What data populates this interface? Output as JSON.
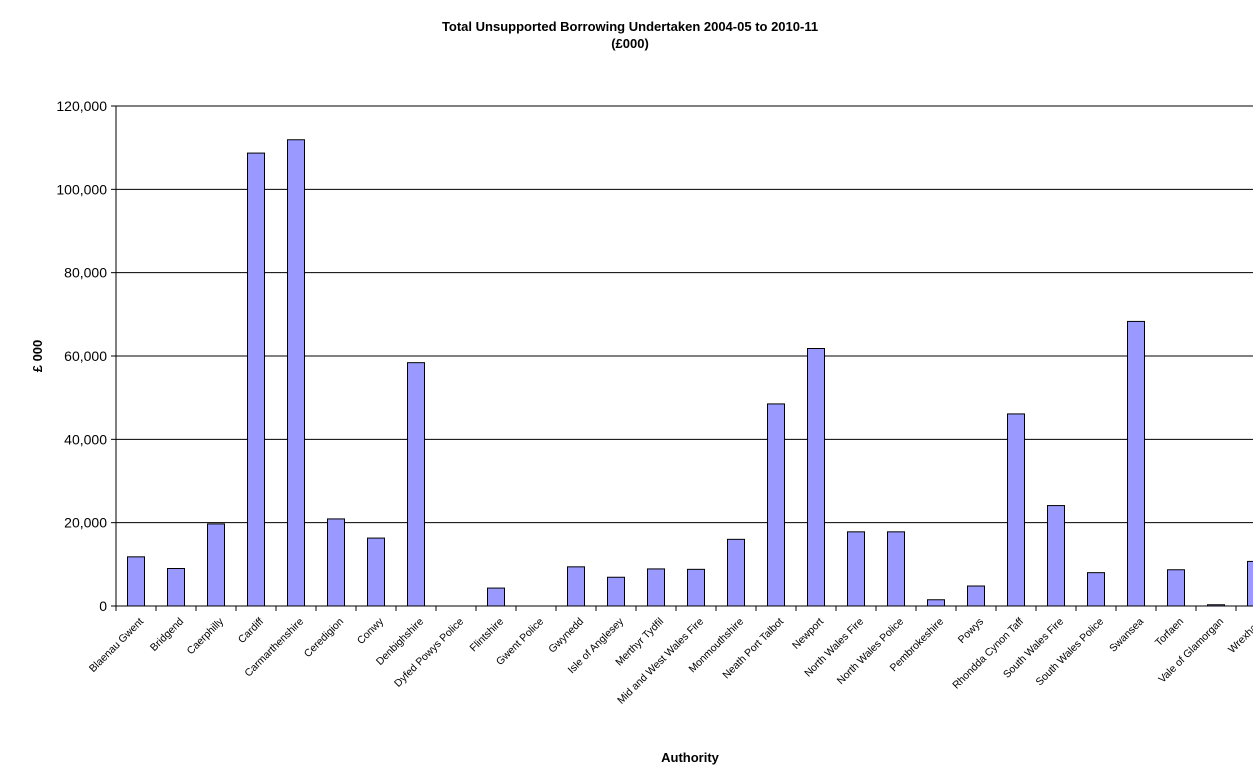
{
  "chart_data": {
    "type": "bar",
    "title": "Total Unsupported Borrowing Undertaken  2004-05 to 2010-11",
    "subtitle": "(£000)",
    "xlabel": "Authority",
    "ylabel": "£ 000",
    "ylim": [
      0,
      120000
    ],
    "yticks": [
      "0",
      "20,000",
      "40,000",
      "60,000",
      "80,000",
      "100,000",
      "120,000"
    ],
    "ytick_values": [
      0,
      20000,
      40000,
      60000,
      80000,
      100000,
      120000
    ],
    "grid": true,
    "legend": "none",
    "bar_color": "#9999ff",
    "categories": [
      "Blaenau Gwent",
      "Bridgend",
      "Caerphilly",
      "Cardiff",
      "Carmarthenshire",
      "Ceredigion",
      "Conwy",
      "Denbighshire",
      "Dyfed Powys Police",
      "Flintshire",
      "Gwent Police",
      "Gwynedd",
      "Isle of Anglesey",
      "Merthyr Tydfil",
      "Mid and West Wales Fire",
      "Monmouthshire",
      "Neath Port Talbot",
      "Newport",
      "North Wales Fire",
      "North Wales Police",
      "Pembrokeshire",
      "Powys",
      "Rhondda Cynon Taff",
      "South Wales Fire",
      "South Wales Police",
      "Swansea",
      "Torfaen",
      "Vale of Glamorgan",
      "Wrexham"
    ],
    "values": [
      11800,
      9000,
      19700,
      108700,
      111900,
      20900,
      16300,
      58400,
      0,
      4300,
      0,
      9400,
      6900,
      8900,
      8800,
      16000,
      48500,
      61800,
      17800,
      17800,
      1500,
      4800,
      46100,
      24100,
      8000,
      68300,
      8700,
      300,
      10700
    ]
  }
}
